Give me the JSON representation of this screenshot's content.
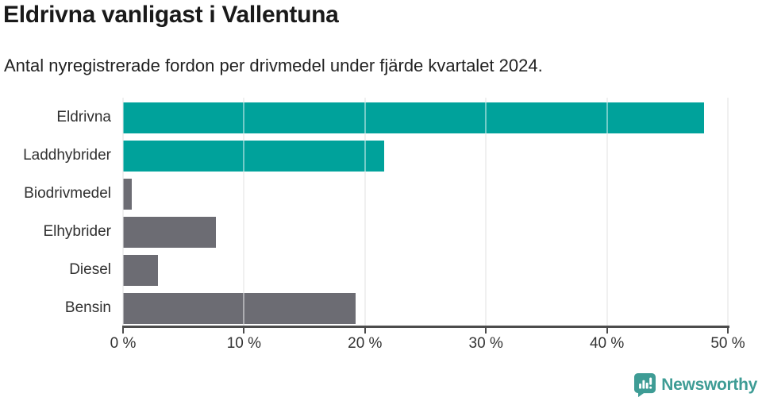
{
  "header": {
    "title": "Eldrivna vanligast i Vallentuna",
    "subtitle": "Antal nyregistrerade fordon per drivmedel under fjärde kvartalet 2024."
  },
  "chart_data": {
    "type": "bar",
    "orientation": "horizontal",
    "title": "Eldrivna vanligast i Vallentuna",
    "subtitle": "Antal nyregistrerade fordon per drivmedel under fjärde kvartalet 2024.",
    "categories": [
      "Eldrivna",
      "Laddhybrider",
      "Biodrivmedel",
      "Elhybrider",
      "Diesel",
      "Bensin"
    ],
    "values": [
      48,
      21.6,
      0.7,
      7.7,
      2.9,
      19.2
    ],
    "unit": "%",
    "xlim": [
      0,
      50
    ],
    "x_ticks": [
      0,
      10,
      20,
      30,
      40,
      50
    ],
    "x_tick_labels": [
      "0 %",
      "10 %",
      "20 %",
      "30 %",
      "40 %",
      "50 %"
    ],
    "bar_colors": [
      "#00a29b",
      "#00a29b",
      "#6c6c73",
      "#6c6c73",
      "#6c6c73",
      "#6c6c73"
    ],
    "grid": true,
    "legend": null,
    "xlabel": "",
    "ylabel": ""
  },
  "colors": {
    "highlight_teal": "#00a29b",
    "default_gray": "#6c6c73",
    "gridline": "#e3e3e3",
    "axis": "#4c4c4c",
    "brand_teal": "#3e9c95"
  },
  "footer": {
    "brand": "Newsworthy",
    "logo_icon": "bar-chart-speech-bubble-icon"
  }
}
